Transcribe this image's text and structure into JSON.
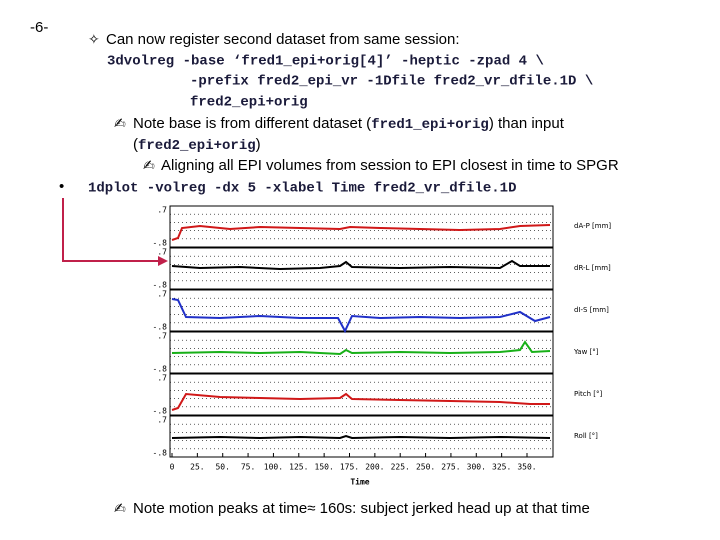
{
  "page_number": "-6-",
  "intro": {
    "marker": "✧",
    "text": "Can now register second dataset from same session:"
  },
  "command_lines": [
    "3dvolreg -base ‘fred1_epi+orig[4]’ -heptic -zpad 4 \\",
    "-prefix fred2_epi_vr -1Dfile fred2_vr_dfile.1D \\",
    "fred2_epi+orig"
  ],
  "note_base": {
    "marker": "✍",
    "line1": [
      "Note base is from different dataset (",
      "fred1_epi+orig",
      ") than input"
    ],
    "line2": [
      "(",
      "fred2_epi+orig",
      ")"
    ]
  },
  "note_align": {
    "marker": "✍",
    "text": "Aligning all EPI volumes from session to EPI closest in time to SPGR"
  },
  "bullet": {
    "marker": "•",
    "command": "1dplot -volreg -dx 5 -xlabel Time fred2_vr_dfile.1D"
  },
  "figure": {
    "panels": [
      {
        "label": "dA-P [mm]",
        "yticks": [
          ".7",
          "-.8"
        ]
      },
      {
        "label": "dR-L [mm]",
        "yticks": [
          ".7",
          "-.8"
        ]
      },
      {
        "label": "dI-S [mm]",
        "yticks": [
          ".7",
          "-.8"
        ]
      },
      {
        "label": "Yaw [°]",
        "yticks": [
          ".7",
          "-.8"
        ]
      },
      {
        "label": "Pitch [°]",
        "yticks": [
          ".7",
          "-.8"
        ]
      },
      {
        "label": "Roll [°]",
        "yticks": [
          ".7",
          "-.8"
        ]
      }
    ],
    "xticks": [
      "0",
      "25.",
      "50.",
      "75.",
      "100.",
      "125.",
      "150.",
      "175.",
      "200.",
      "225.",
      "250.",
      "275.",
      "300.",
      "325.",
      "350."
    ],
    "xlabel": "Time"
  },
  "note_motion": {
    "marker": "✍",
    "text": "Note motion peaks at time≈ 160s: subject jerked head up at that time"
  }
}
